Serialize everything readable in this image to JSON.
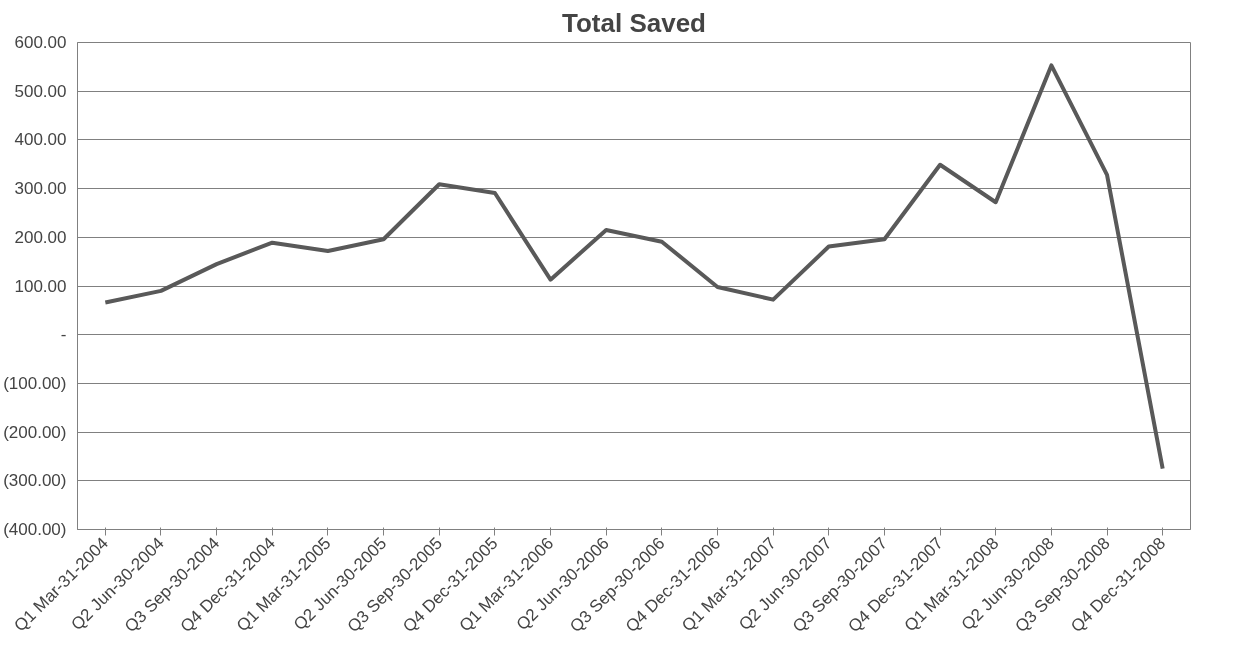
{
  "chart_data": {
    "type": "line",
    "title": "Total Saved",
    "categories": [
      "Q1 Mar-31-2004",
      "Q2 Jun-30-2004",
      "Q3 Sep-30-2004",
      "Q4 Dec-31-2004",
      "Q1 Mar-31-2005",
      "Q2 Jun-30-2005",
      "Q3 Sep-30-2005",
      "Q4 Dec-31-2005",
      "Q1 Mar-31-2006",
      "Q2 Jun-30-2006",
      "Q3 Sep-30-2006",
      "Q4 Dec-31-2006",
      "Q1 Mar-31-2007",
      "Q2 Jun-30-2007",
      "Q3 Sep-30-2007",
      "Q4 Dec-31-2007",
      "Q1 Mar-31-2008",
      "Q2 Jun-30-2008",
      "Q3 Sep-30-2008",
      "Q4 Dec-31-2008"
    ],
    "series": [
      {
        "color": "#595959",
        "values": [
          66,
          90,
          145,
          189,
          172,
          196,
          309,
          291,
          113,
          215,
          191,
          98,
          72,
          181,
          196,
          349,
          272,
          553,
          328,
          -275
        ]
      }
    ],
    "ylim": [
      -400,
      600
    ],
    "yticks": [
      {
        "value": -400,
        "label": "(400.00)"
      },
      {
        "value": -300,
        "label": "(300.00)"
      },
      {
        "value": -200,
        "label": "(200.00)"
      },
      {
        "value": -100,
        "label": "(100.00)"
      },
      {
        "value": 0,
        "label": "-"
      },
      {
        "value": 100,
        "label": "100.00"
      },
      {
        "value": 200,
        "label": "200.00"
      },
      {
        "value": 300,
        "label": "300.00"
      },
      {
        "value": 400,
        "label": "400.00"
      },
      {
        "value": 500,
        "label": "500.00"
      },
      {
        "value": 600,
        "label": "600.00"
      }
    ],
    "grid": "y",
    "marker": "none",
    "line_style": "solid"
  }
}
